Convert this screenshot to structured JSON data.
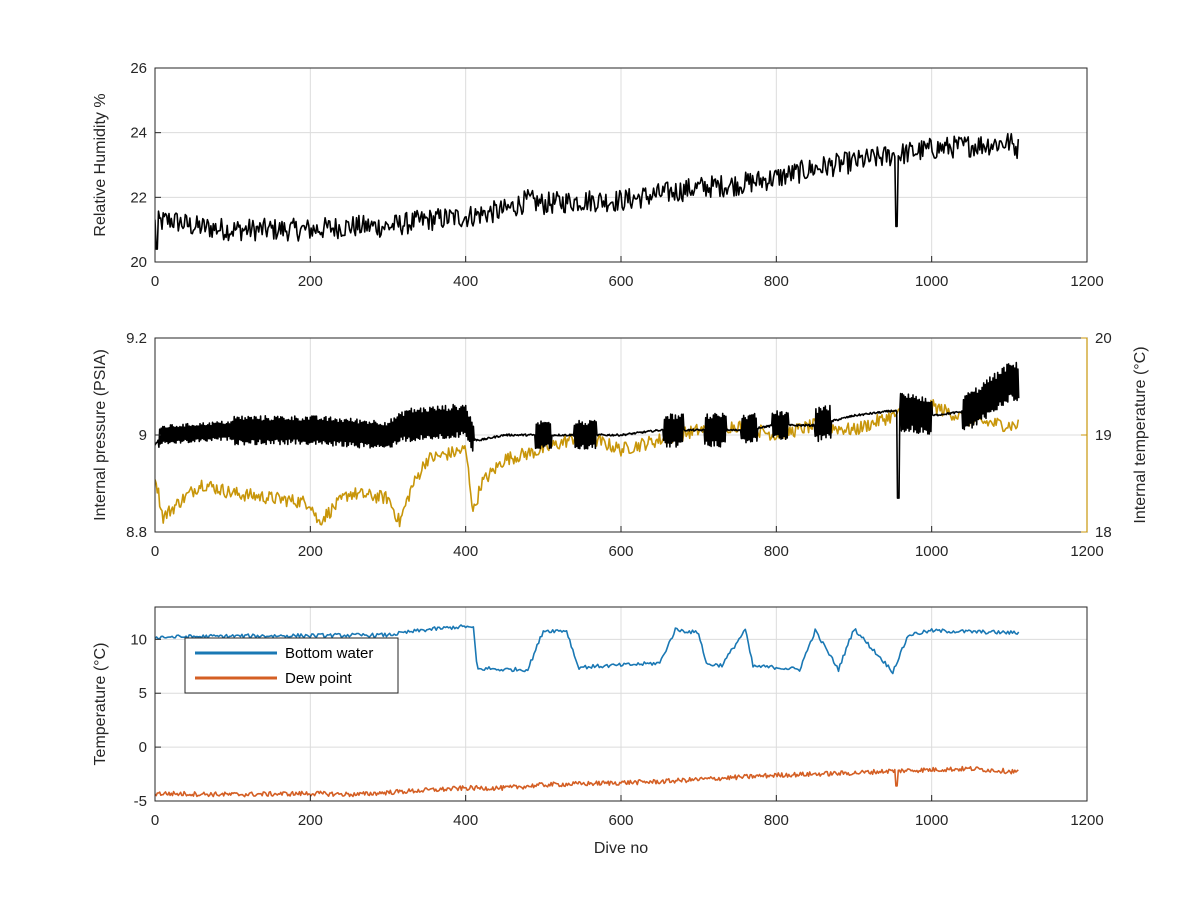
{
  "colors": {
    "axis": "#262626",
    "grid": "#dcdcdc",
    "humidity": "#000000",
    "pressure": "#000000",
    "internal_temperature": "#c8960a",
    "bottom_water": "#1a78b4",
    "dew_point": "#d45f24"
  },
  "chart_data": [
    {
      "type": "line",
      "title": "",
      "xlabel": "",
      "ylabel": "Relative Humidity %",
      "xlim": [
        0,
        1200
      ],
      "ylim": [
        20,
        26
      ],
      "xticks": [
        "0",
        "200",
        "400",
        "600",
        "800",
        "1000",
        "1200"
      ],
      "yticks": [
        "20",
        "22",
        "24",
        "26"
      ],
      "grid": true,
      "series": [
        {
          "color": "#000000",
          "x": [
            0,
            20,
            50,
            100,
            150,
            200,
            250,
            300,
            350,
            400,
            450,
            480,
            500,
            550,
            600,
            650,
            700,
            750,
            800,
            850,
            900,
            950,
            1000,
            1050,
            1100,
            1112
          ],
          "y": [
            21.2,
            21.3,
            21.1,
            21.0,
            21.0,
            21.0,
            21.1,
            21.1,
            21.3,
            21.4,
            21.6,
            21.9,
            21.8,
            21.9,
            21.9,
            22.1,
            22.3,
            22.4,
            22.6,
            22.9,
            23.1,
            23.3,
            23.5,
            23.6,
            23.7,
            23.5
          ],
          "noise": 0.35
        }
      ],
      "annotations": [
        {
          "x": 2,
          "y": 20.4,
          "kind": "dip"
        },
        {
          "x": 955,
          "y": 21.1,
          "kind": "dip"
        }
      ]
    },
    {
      "type": "line",
      "title": "",
      "xlabel": "",
      "ylabel": "Internal pressure (PSIA)",
      "ylabel_right": "Internal temperature (°C)",
      "xlim": [
        0,
        1200
      ],
      "ylim": [
        8.8,
        9.2
      ],
      "ylim_right": [
        18,
        20
      ],
      "xticks": [
        "0",
        "200",
        "400",
        "600",
        "800",
        "1000",
        "1200"
      ],
      "yticks": [
        "8.8",
        "9",
        "9.2"
      ],
      "yticks_right": [
        "18",
        "19",
        "20"
      ],
      "grid": true,
      "series": [
        {
          "axis": "left",
          "color": "#000000",
          "x": [
            0,
            10,
            100,
            200,
            300,
            320,
            400,
            410,
            420,
            450,
            490,
            510,
            540,
            570,
            600,
            650,
            700,
            750,
            800,
            850,
            900,
            950,
            1000,
            1050,
            1100,
            1112
          ],
          "y": [
            8.98,
            9.0,
            9.01,
            9.01,
            9.0,
            9.02,
            9.03,
            8.99,
            8.99,
            9.0,
            9.0,
            9.0,
            9.0,
            9.0,
            9.0,
            9.01,
            9.01,
            9.01,
            9.02,
            9.02,
            9.04,
            9.05,
            9.04,
            9.05,
            9.11,
            9.11
          ],
          "oscillation": [
            {
              "from": 5,
              "to": 100,
              "amp": 0.02
            },
            {
              "from": 100,
              "to": 320,
              "amp": 0.03
            },
            {
              "from": 320,
              "to": 410,
              "amp": 0.035
            },
            {
              "from": 490,
              "to": 510,
              "amp": 0.03
            },
            {
              "from": 540,
              "to": 568,
              "amp": 0.03
            },
            {
              "from": 655,
              "to": 680,
              "amp": 0.035
            },
            {
              "from": 708,
              "to": 735,
              "amp": 0.035
            },
            {
              "from": 755,
              "to": 775,
              "amp": 0.03
            },
            {
              "from": 795,
              "to": 815,
              "amp": 0.03
            },
            {
              "from": 850,
              "to": 870,
              "amp": 0.035
            },
            {
              "from": 960,
              "to": 1000,
              "amp": 0.04
            },
            {
              "from": 1040,
              "to": 1112,
              "amp": 0.04
            }
          ]
        },
        {
          "axis": "right",
          "color": "#c8960a",
          "x": [
            0,
            10,
            30,
            60,
            100,
            150,
            200,
            210,
            250,
            300,
            315,
            330,
            350,
            400,
            410,
            420,
            450,
            500,
            550,
            600,
            650,
            700,
            750,
            800,
            850,
            900,
            950,
            1000,
            1050,
            1100,
            1112
          ],
          "y": [
            18.6,
            18.15,
            18.3,
            18.5,
            18.4,
            18.35,
            18.3,
            18.1,
            18.4,
            18.35,
            18.1,
            18.45,
            18.75,
            18.85,
            18.2,
            18.5,
            18.75,
            18.85,
            19.0,
            18.85,
            18.95,
            19.05,
            19.1,
            19.0,
            19.1,
            19.05,
            19.2,
            19.3,
            19.15,
            19.1,
            19.1
          ],
          "noise": 0.07
        }
      ]
    },
    {
      "type": "line",
      "title": "",
      "xlabel": "Dive no",
      "ylabel": "Temperature (°C)",
      "xlim": [
        0,
        1200
      ],
      "ylim": [
        -5,
        13
      ],
      "xticks": [
        "0",
        "200",
        "400",
        "600",
        "800",
        "1000",
        "1200"
      ],
      "yticks": [
        "-5",
        "0",
        "5",
        "10"
      ],
      "grid": true,
      "legend": "top-left",
      "series": [
        {
          "name": "Bottom water",
          "color": "#1a78b4",
          "x": [
            0,
            100,
            300,
            350,
            400,
            410,
            415,
            430,
            440,
            480,
            500,
            530,
            545,
            570,
            600,
            650,
            670,
            700,
            710,
            730,
            760,
            770,
            800,
            830,
            850,
            880,
            900,
            950,
            970,
            1000,
            1112
          ],
          "y": [
            10.2,
            10.3,
            10.4,
            10.9,
            11.2,
            11.0,
            7.2,
            7.3,
            7.2,
            7.2,
            10.8,
            10.8,
            7.4,
            7.5,
            7.6,
            7.8,
            10.9,
            10.6,
            7.7,
            7.6,
            10.9,
            7.5,
            7.4,
            7.2,
            10.8,
            7.2,
            11.0,
            7.0,
            10.4,
            10.8,
            10.6
          ],
          "noise": 0.18
        },
        {
          "name": "Dew point",
          "color": "#d45f24",
          "x": [
            0,
            100,
            200,
            260,
            300,
            350,
            400,
            450,
            500,
            550,
            600,
            650,
            700,
            750,
            800,
            850,
            900,
            950,
            1000,
            1050,
            1112
          ],
          "y": [
            -4.3,
            -4.4,
            -4.3,
            -4.4,
            -4.2,
            -4.0,
            -3.8,
            -3.8,
            -3.5,
            -3.4,
            -3.3,
            -3.2,
            -3.0,
            -2.8,
            -2.6,
            -2.5,
            -2.4,
            -2.2,
            -2.1,
            -2.0,
            -2.3
          ],
          "noise": 0.22
        }
      ]
    }
  ]
}
